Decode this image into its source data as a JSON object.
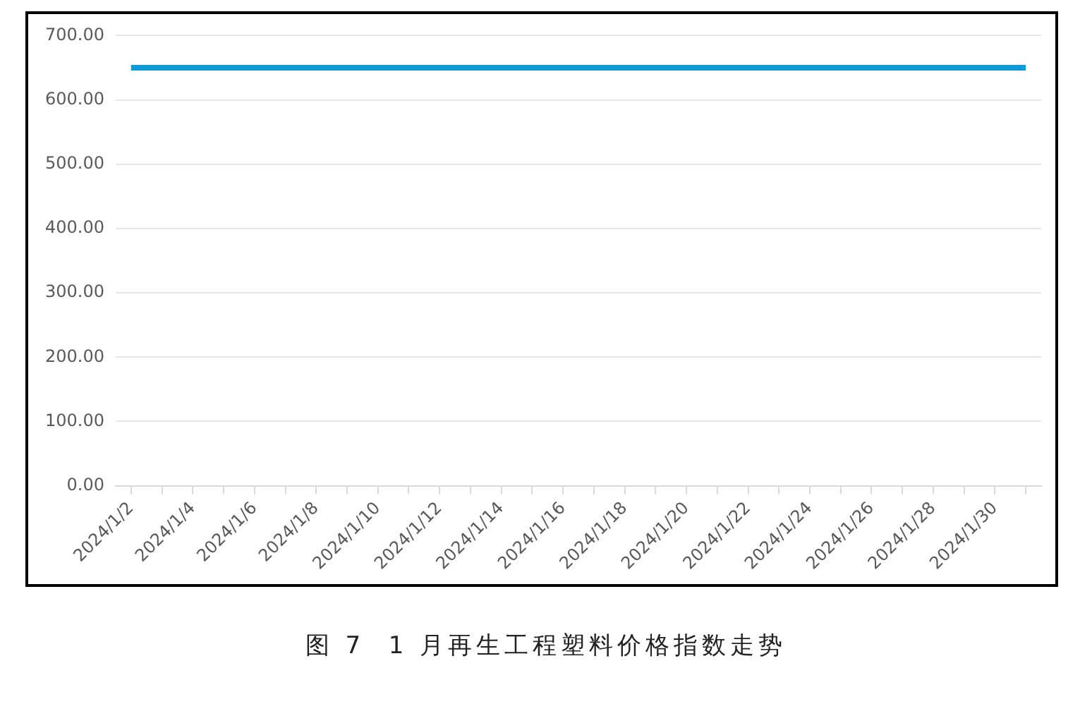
{
  "chart_data": {
    "type": "line",
    "title": "图 7  1 月再生工程塑料价格指数走势",
    "categories": [
      "2024/1/2",
      null,
      "2024/1/4",
      null,
      "2024/1/6",
      null,
      "2024/1/8",
      null,
      "2024/1/10",
      null,
      "2024/1/12",
      null,
      "2024/1/14",
      null,
      "2024/1/16",
      null,
      "2024/1/18",
      null,
      "2024/1/20",
      null,
      "2024/1/22",
      null,
      "2024/1/24",
      null,
      "2024/1/26",
      null,
      "2024/1/28",
      null,
      "2024/1/30",
      null
    ],
    "series": [
      {
        "color": "#0e9bd8",
        "values": [
          650,
          650,
          650,
          650,
          650,
          650,
          650,
          650,
          650,
          650,
          650,
          650,
          650,
          650,
          650,
          650,
          650,
          650,
          650,
          650,
          650,
          650,
          650,
          650,
          650,
          650,
          650,
          650,
          650,
          650
        ]
      }
    ],
    "ylim": [
      0,
      700
    ],
    "yticks": [
      {
        "value": 0,
        "label": "0.00"
      },
      {
        "value": 100,
        "label": "100.00"
      },
      {
        "value": 200,
        "label": "200.00"
      },
      {
        "value": 300,
        "label": "300.00"
      },
      {
        "value": 400,
        "label": "400.00"
      },
      {
        "value": 500,
        "label": "500.00"
      },
      {
        "value": 600,
        "label": "600.00"
      },
      {
        "value": 700,
        "label": "700.00"
      }
    ],
    "grid": "y",
    "legend": false,
    "marker": "none",
    "line_style": "solid"
  }
}
